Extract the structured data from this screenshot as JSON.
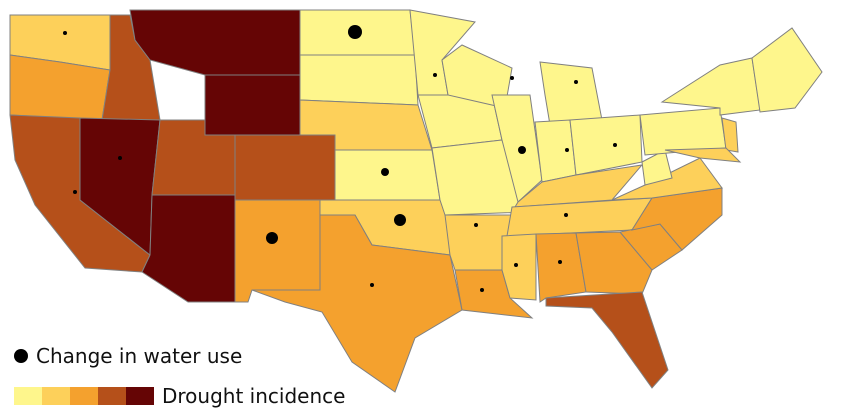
{
  "legend": {
    "water_use_label": "Change in water use",
    "drought_label": "Drought incidence",
    "drought_colors": [
      "#FEF68C",
      "#FDD05A",
      "#F4A12E",
      "#B5501A",
      "#650505"
    ]
  },
  "border_color": "#808080",
  "dot_color": "#000000",
  "states": {
    "WA": {
      "drought": 1,
      "water_use": 1
    },
    "OR": {
      "drought": 2,
      "water_use": 0
    },
    "ID": {
      "drought": 3,
      "water_use": 0
    },
    "MT": {
      "drought": 4,
      "water_use": 0
    },
    "WY": {
      "drought": 4,
      "water_use": 0
    },
    "CA": {
      "drought": 3,
      "water_use": 1
    },
    "NV": {
      "drought": 4,
      "water_use": 1
    },
    "UT": {
      "drought": 3,
      "water_use": 0
    },
    "CO": {
      "drought": 3,
      "water_use": 0
    },
    "AZ": {
      "drought": 4,
      "water_use": 0
    },
    "NM": {
      "drought": 2,
      "water_use": 4
    },
    "ND": {
      "drought": 0,
      "water_use": 5
    },
    "SD": {
      "drought": 0,
      "water_use": 0
    },
    "NE": {
      "drought": 1,
      "water_use": 0
    },
    "KS": {
      "drought": 0,
      "water_use": 2
    },
    "OK": {
      "drought": 1,
      "water_use": 4
    },
    "TX": {
      "drought": 2,
      "water_use": 1
    },
    "MN": {
      "drought": 0,
      "water_use": 1
    },
    "IA": {
      "drought": 0,
      "water_use": 0
    },
    "MO": {
      "drought": 0,
      "water_use": 0
    },
    "AR": {
      "drought": 1,
      "water_use": 1
    },
    "LA": {
      "drought": 2,
      "water_use": 1
    },
    "WI": {
      "drought": 0,
      "water_use": 1
    },
    "IL": {
      "drought": 0,
      "water_use": 2
    },
    "MI": {
      "drought": 0,
      "water_use": 1
    },
    "IN": {
      "drought": 0,
      "water_use": 1
    },
    "OH": {
      "drought": 0,
      "water_use": 1
    },
    "KY": {
      "drought": 1,
      "water_use": 0
    },
    "TN": {
      "drought": 1,
      "water_use": 1
    },
    "MS": {
      "drought": 1,
      "water_use": 1
    },
    "AL": {
      "drought": 2,
      "water_use": 1
    },
    "GA": {
      "drought": 2,
      "water_use": 0
    },
    "FL": {
      "drought": 3,
      "water_use": 0
    },
    "SC": {
      "drought": 2,
      "water_use": 0
    },
    "NC": {
      "drought": 2,
      "water_use": 0
    },
    "VA": {
      "drought": 1,
      "water_use": 0
    },
    "WV": {
      "drought": 0,
      "water_use": 0
    },
    "PA": {
      "drought": 0,
      "water_use": 0
    },
    "NY": {
      "drought": 0,
      "water_use": 0
    },
    "NJ": {
      "drought": 1,
      "water_use": 0
    },
    "MD": {
      "drought": 1,
      "water_use": 0
    },
    "NE_REGION": {
      "drought": 0,
      "water_use": 0
    }
  }
}
